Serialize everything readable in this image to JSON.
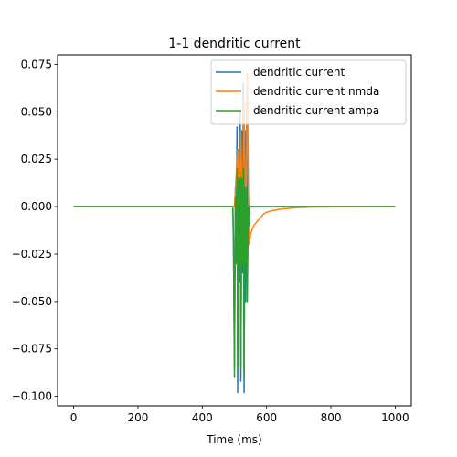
{
  "chart_data": {
    "type": "line",
    "title": "1-1 dendritic current",
    "xlabel": "Time (ms)",
    "ylabel": "",
    "xlim": [
      -50,
      1050
    ],
    "ylim": [
      -0.105,
      0.08
    ],
    "xticks": [
      0,
      200,
      400,
      600,
      800,
      1000
    ],
    "yticks": [
      -0.1,
      -0.075,
      -0.05,
      -0.025,
      0.0,
      0.025,
      0.05,
      0.075
    ],
    "xtick_labels": [
      "0",
      "200",
      "400",
      "600",
      "800",
      "1000"
    ],
    "ytick_labels": [
      "−0.100",
      "−0.075",
      "−0.050",
      "−0.025",
      "0.000",
      "0.025",
      "0.050",
      "0.075"
    ],
    "grid": false,
    "legend_position": "top-right",
    "series": [
      {
        "name": "dendritic current",
        "color": "#1f77b4",
        "x": [
          0,
          495,
          497,
          500,
          503,
          505,
          508,
          510,
          513,
          515,
          518,
          520,
          523,
          525,
          528,
          530,
          533,
          535,
          538,
          540,
          543,
          545,
          548,
          552,
          560,
          580,
          1000
        ],
        "y": [
          0,
          0,
          -0.02,
          -0.085,
          0.01,
          -0.03,
          0.042,
          -0.098,
          0.03,
          -0.04,
          0.05,
          -0.092,
          0.04,
          -0.035,
          0.065,
          -0.098,
          0.04,
          -0.05,
          0.055,
          -0.04,
          0.01,
          -0.005,
          0.0,
          0.0,
          0.0,
          0.0,
          0.0
        ]
      },
      {
        "name": "dendritic current nmda",
        "color": "#ff7f0e",
        "x": [
          0,
          495,
          500,
          505,
          510,
          515,
          520,
          525,
          530,
          535,
          540,
          545,
          550,
          555,
          560,
          570,
          580,
          590,
          600,
          620,
          650,
          700,
          750,
          1000
        ],
        "y": [
          0,
          0,
          0.0,
          0.015,
          0.03,
          -0.005,
          0.04,
          -0.01,
          0.055,
          -0.015,
          0.07,
          -0.02,
          -0.015,
          -0.012,
          -0.01,
          -0.008,
          -0.006,
          -0.004,
          -0.003,
          -0.002,
          -0.0012,
          -0.0005,
          -0.0002,
          0.0
        ]
      },
      {
        "name": "dendritic current ampa",
        "color": "#2ca02c",
        "x": [
          0,
          495,
          497,
          500,
          503,
          505,
          508,
          510,
          513,
          515,
          518,
          520,
          523,
          525,
          528,
          530,
          533,
          535,
          538,
          540,
          543,
          545,
          548,
          552,
          560,
          1000
        ],
        "y": [
          0,
          0,
          -0.015,
          -0.09,
          0.005,
          -0.03,
          0.02,
          -0.085,
          0.015,
          -0.03,
          0.015,
          -0.085,
          0.015,
          -0.03,
          0.02,
          -0.09,
          0.01,
          -0.03,
          0.01,
          -0.05,
          0.0,
          -0.01,
          0.0,
          0.0,
          0.0,
          0.0
        ]
      }
    ]
  }
}
